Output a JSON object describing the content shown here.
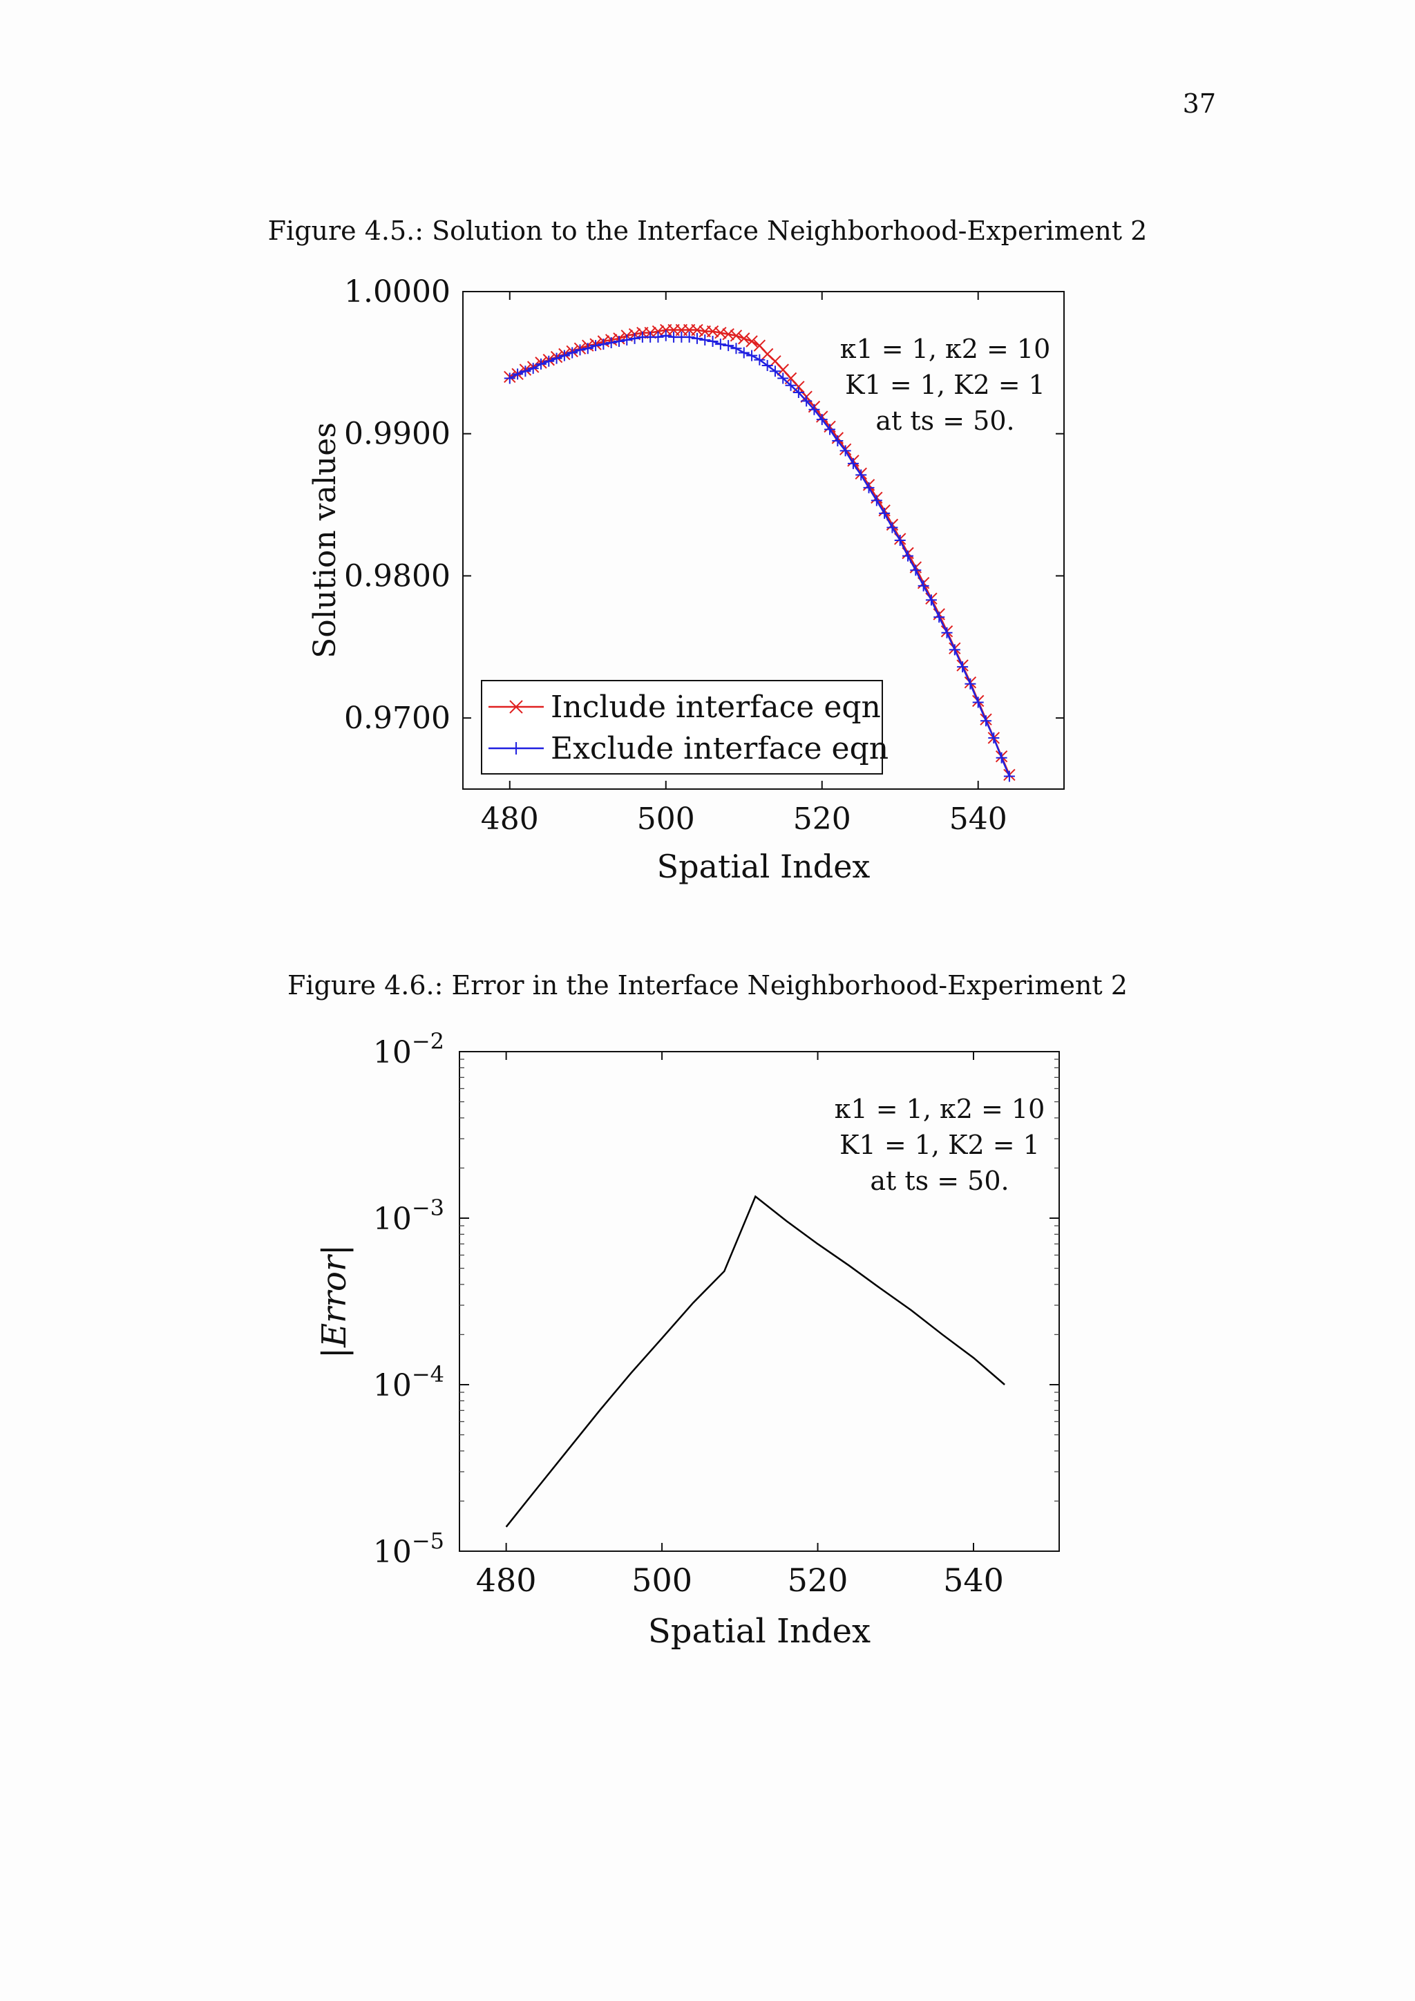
{
  "page": {
    "number": "37"
  },
  "figures": [
    {
      "caption": "Figure 4.5.: Solution to the Interface Neighborhood-Experiment 2"
    },
    {
      "caption": "Figure 4.6.: Error in the Interface Neighborhood-Experiment 2"
    }
  ],
  "chart_data": [
    {
      "type": "line",
      "xlabel": "Spatial Index",
      "ylabel": "Solution values",
      "xlim": [
        474,
        551
      ],
      "ylim": [
        0.965,
        1.0
      ],
      "xticks": [
        480,
        500,
        520,
        540
      ],
      "yticks": [
        0.97,
        0.98,
        0.99,
        1.0
      ],
      "ytick_labels": [
        "0.9700",
        "0.9800",
        "0.9900",
        "1.0000"
      ],
      "grid": false,
      "legend_position": "bottom-left",
      "annotation": [
        "κ1 = 1, κ2 = 10",
        "K1 = 1, K2 = 1",
        "at ts = 50."
      ],
      "x": [
        480,
        481,
        482,
        483,
        484,
        485,
        486,
        487,
        488,
        489,
        490,
        491,
        492,
        493,
        494,
        495,
        496,
        497,
        498,
        499,
        500,
        501,
        502,
        503,
        504,
        505,
        506,
        507,
        508,
        509,
        510,
        511,
        512,
        513,
        514,
        515,
        516,
        517,
        518,
        519,
        520,
        521,
        522,
        523,
        524,
        525,
        526,
        527,
        528,
        529,
        530,
        531,
        532,
        533,
        534,
        535,
        536,
        537,
        538,
        539,
        540,
        541,
        542,
        543,
        544
      ],
      "series": [
        {
          "name": "Include interface eqn",
          "color": "#e02020",
          "marker": "x",
          "values": [
            0.994,
            0.9942,
            0.9945,
            0.9947,
            0.995,
            0.9952,
            0.9954,
            0.9956,
            0.9958,
            0.996,
            0.9962,
            0.9963,
            0.9965,
            0.9966,
            0.9967,
            0.9969,
            0.997,
            0.9971,
            0.9971,
            0.9972,
            0.9973,
            0.9973,
            0.9973,
            0.9973,
            0.9973,
            0.9972,
            0.9972,
            0.9971,
            0.997,
            0.9969,
            0.9967,
            0.9965,
            0.9962,
            0.9956,
            0.9951,
            0.9945,
            0.9939,
            0.9933,
            0.9926,
            0.9919,
            0.9912,
            0.9905,
            0.9897,
            0.9889,
            0.9881,
            0.9872,
            0.9864,
            0.9855,
            0.9846,
            0.9836,
            0.9826,
            0.9816,
            0.9806,
            0.9795,
            0.9784,
            0.9773,
            0.9761,
            0.9749,
            0.9737,
            0.9725,
            0.9712,
            0.9699,
            0.9686,
            0.9673,
            0.966
          ]
        },
        {
          "name": "Exclude interface eqn",
          "color": "#2020e0",
          "marker": "+",
          "values": [
            0.9939,
            0.9942,
            0.9944,
            0.9946,
            0.9949,
            0.9951,
            0.9953,
            0.9955,
            0.9957,
            0.9959,
            0.996,
            0.9962,
            0.9963,
            0.9964,
            0.9965,
            0.9966,
            0.9967,
            0.9968,
            0.9968,
            0.9968,
            0.9969,
            0.9968,
            0.9968,
            0.9968,
            0.9967,
            0.9966,
            0.9965,
            0.9963,
            0.9962,
            0.996,
            0.9957,
            0.9955,
            0.9952,
            0.9948,
            0.9944,
            0.9939,
            0.9934,
            0.9929,
            0.9923,
            0.9917,
            0.991,
            0.9903,
            0.9895,
            0.9888,
            0.9879,
            0.9871,
            0.9862,
            0.9853,
            0.9844,
            0.9834,
            0.9825,
            0.9814,
            0.9804,
            0.9793,
            0.9783,
            0.9771,
            0.976,
            0.9748,
            0.9736,
            0.9724,
            0.9711,
            0.9698,
            0.9686,
            0.9672,
            0.9659
          ]
        }
      ]
    },
    {
      "type": "line",
      "xlabel": "Spatial Index",
      "ylabel": "|Error|",
      "yscale": "log",
      "xlim": [
        474,
        551
      ],
      "ylim": [
        1e-05,
        0.01
      ],
      "xticks": [
        480,
        500,
        520,
        540
      ],
      "yticks": [
        1e-05,
        0.0001,
        0.001,
        0.01
      ],
      "ytick_labels": [
        {
          "base": "10",
          "exp": "−5"
        },
        {
          "base": "10",
          "exp": "−4"
        },
        {
          "base": "10",
          "exp": "−3"
        },
        {
          "base": "10",
          "exp": "−2"
        }
      ],
      "grid": false,
      "annotation": [
        "κ1 = 1, κ2 = 10",
        "K1 = 1, K2 = 1",
        "at ts = 50."
      ],
      "x": [
        480,
        484,
        488,
        492,
        496,
        500,
        504,
        508,
        512,
        516,
        520,
        524,
        528,
        532,
        536,
        540,
        544
      ],
      "series": [
        {
          "color": "#000000",
          "values": [
            1.4e-05,
            2.4e-05,
            4.1e-05,
            7e-05,
            0.000117,
            0.00019,
            0.00031,
            0.00048,
            0.00135,
            0.00096,
            0.0007,
            0.00052,
            0.00038,
            0.00028,
            0.0002,
            0.000145,
            0.0001
          ]
        }
      ]
    }
  ]
}
